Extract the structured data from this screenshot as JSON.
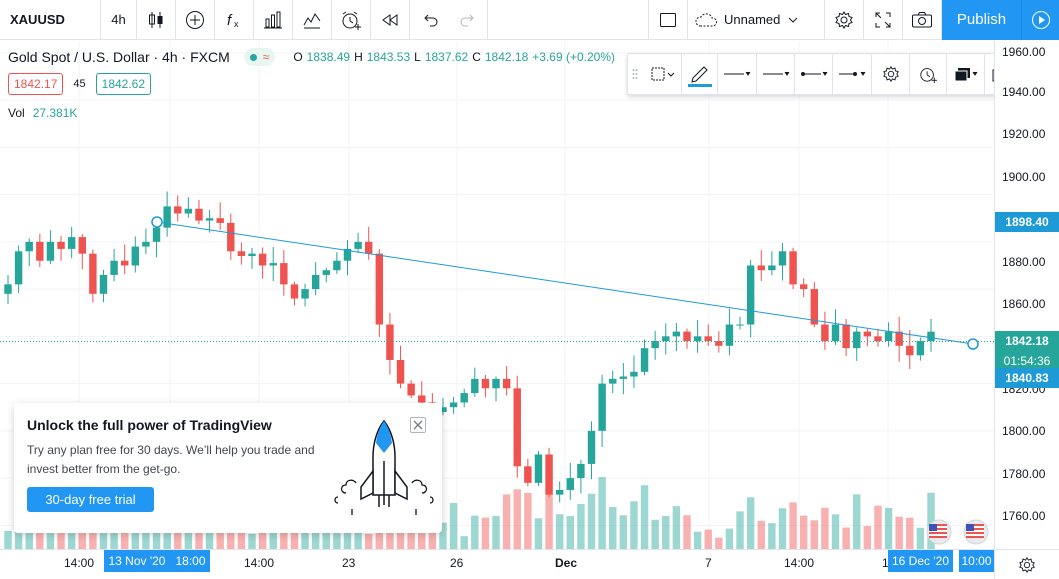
{
  "toolbar": {
    "symbol": "XAUUSD",
    "interval": "4h",
    "icons": [
      "candles-icon",
      "add-compare-icon",
      "indicators-icon",
      "financials-icon",
      "templates-icon",
      "alert-icon",
      "replay-icon",
      "undo-icon",
      "redo-icon"
    ],
    "layout_name": "Unnamed",
    "publish_label": "Publish"
  },
  "legend": {
    "title": "Gold Spot / U.S. Dollar · 4h · FXCM",
    "open_label": "O",
    "open": "1838.49",
    "high_label": "H",
    "high": "1843.53",
    "low_label": "L",
    "low": "1837.62",
    "close_label": "C",
    "close": "1842.18",
    "change": "+3.69 (+0.20%)",
    "bid": "1842.17",
    "spread": "45",
    "ask": "1842.62",
    "vol_label": "Vol",
    "vol_value": "27.381K"
  },
  "promo": {
    "title": "Unlock the full power of TradingView",
    "text": "Try any plan free for 30 days. We’ll help you trade and invest better from the get-go.",
    "button": "30-day free trial"
  },
  "price_scale": {
    "ticks": [
      "1960.00",
      "1940.00",
      "1920.00",
      "1900.00",
      "1880.00",
      "1860.00",
      "1840.00",
      "1820.00",
      "1800.00",
      "1780.00",
      "1760.00"
    ],
    "label_trend": "1898.40",
    "label_last": "1842.18",
    "label_countdown": "01:54:36",
    "label_trend2": "1840.83"
  },
  "time_scale": {
    "ticks": [
      "14:00",
      "14:00",
      "23",
      "26",
      "Dec",
      "7",
      "14:00",
      "1"
    ],
    "label_left": "13 Nov '20   18:00",
    "label_right": "16 Dec '20",
    "label_right_time": "10:00"
  },
  "colors": {
    "up": "#26a69a",
    "down": "#ef5350",
    "accent": "#2196f3",
    "trend": "#1e9ad6"
  },
  "chart_data": {
    "type": "candlestick",
    "symbol": "XAUUSD",
    "interval": "4h",
    "ylim": [
      1750,
      1965
    ],
    "trendline": {
      "start": 1898.4,
      "end": 1840.83
    },
    "close_series": [
      1862,
      1876,
      1880,
      1872,
      1880,
      1877,
      1882,
      1875,
      1858,
      1866,
      1872,
      1870,
      1878,
      1880,
      1886,
      1895,
      1892,
      1894,
      1889,
      1890,
      1888,
      1876,
      1874,
      1875,
      1870,
      1871,
      1862,
      1856,
      1860,
      1866,
      1868,
      1872,
      1877,
      1880,
      1875,
      1845,
      1830,
      1820,
      1815,
      1812,
      1808,
      1810,
      1812,
      1816,
      1822,
      1818,
      1822,
      1818,
      1785,
      1778,
      1790,
      1773,
      1775,
      1780,
      1786,
      1800,
      1820,
      1822,
      1823,
      1825,
      1835,
      1838,
      1840,
      1842,
      1838,
      1840,
      1838,
      1836,
      1845,
      1845,
      1870,
      1868,
      1870,
      1876,
      1862,
      1860,
      1845,
      1838,
      1845,
      1835,
      1842,
      1840,
      1838,
      1842,
      1836,
      1832,
      1838,
      1842
    ]
  }
}
